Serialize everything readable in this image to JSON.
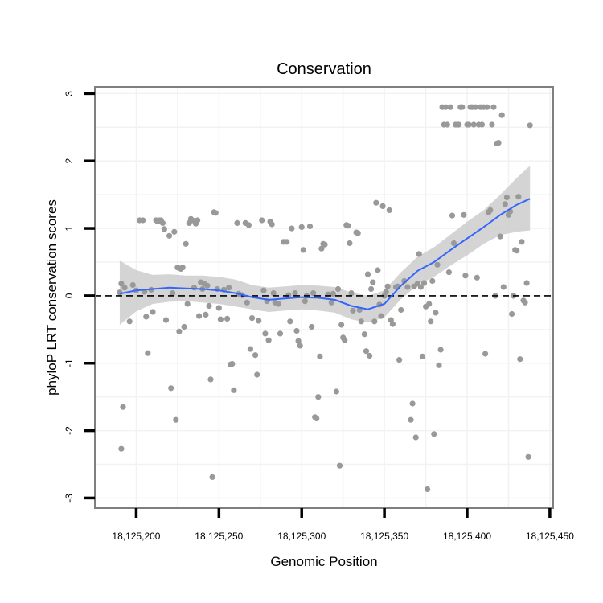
{
  "chart_data": {
    "type": "scatter",
    "title": "Conservation",
    "xlabel": "Genomic Position",
    "ylabel": "phyloP LRT conservation scores",
    "xlim": [
      18125175,
      18125452
    ],
    "ylim": [
      -3.15,
      3.1
    ],
    "x_ticks": [
      18125200,
      18125250,
      18125300,
      18125350,
      18125400,
      18125450
    ],
    "x_tick_labels": [
      "18,125,200",
      "18,125,250",
      "18,125,300",
      "18,125,350",
      "18,125,400",
      "18,125,450"
    ],
    "y_ticks": [
      -3,
      -2,
      -1,
      0,
      1,
      2,
      3
    ],
    "y_tick_labels": [
      "-3",
      "-2",
      "-1",
      "0",
      "1",
      "2",
      "3"
    ],
    "reference_line": {
      "y": 0,
      "style": "dashed"
    },
    "colors": {
      "points": "#999999",
      "smooth_line": "#3366ff",
      "ribbon": "#cccccc",
      "panel_border": "#7f7f7f",
      "grid": "#f2f2f2"
    },
    "series": [
      {
        "name": "scores",
        "kind": "points",
        "points": [
          [
            18125190,
            0.05
          ],
          [
            18125191,
            0.18
          ],
          [
            18125192,
            -1.65
          ],
          [
            18125191,
            -2.27
          ],
          [
            18125193,
            0.12
          ],
          [
            18125196,
            -0.38
          ],
          [
            18125198,
            0.16
          ],
          [
            18125200,
            0.08
          ],
          [
            18125202,
            1.12
          ],
          [
            18125204,
            1.12
          ],
          [
            18125205,
            0.06
          ],
          [
            18125206,
            -0.31
          ],
          [
            18125207,
            -0.85
          ],
          [
            18125209,
            0.09
          ],
          [
            18125210,
            -0.24
          ],
          [
            18125212,
            1.12
          ],
          [
            18125213,
            1.1
          ],
          [
            18125214,
            1.12
          ],
          [
            18125215,
            1.12
          ],
          [
            18125216,
            1.08
          ],
          [
            18125217,
            0.99
          ],
          [
            18125218,
            -0.36
          ],
          [
            18125220,
            0.89
          ],
          [
            18125221,
            -1.37
          ],
          [
            18125222,
            0.04
          ],
          [
            18125223,
            0.95
          ],
          [
            18125224,
            -1.84
          ],
          [
            18125225,
            0.42
          ],
          [
            18125226,
            -0.53
          ],
          [
            18125227,
            0.4
          ],
          [
            18125228,
            0.42
          ],
          [
            18125229,
            -0.46
          ],
          [
            18125230,
            0.77
          ],
          [
            18125231,
            -0.12
          ],
          [
            18125232,
            1.08
          ],
          [
            18125233,
            1.14
          ],
          [
            18125234,
            1.12
          ],
          [
            18125235,
            0.12
          ],
          [
            18125236,
            1.07
          ],
          [
            18125237,
            1.12
          ],
          [
            18125238,
            -0.3
          ],
          [
            18125239,
            0.2
          ],
          [
            18125240,
            0.1
          ],
          [
            18125241,
            0.18
          ],
          [
            18125242,
            -0.28
          ],
          [
            18125243,
            0.15
          ],
          [
            18125244,
            -0.15
          ],
          [
            18125245,
            -1.24
          ],
          [
            18125246,
            -2.69
          ],
          [
            18125247,
            1.24
          ],
          [
            18125248,
            1.23
          ],
          [
            18125249,
            0.1
          ],
          [
            18125250,
            -0.18
          ],
          [
            18125251,
            -0.35
          ],
          [
            18125253,
            0.09
          ],
          [
            18125255,
            -0.34
          ],
          [
            18125256,
            0.12
          ],
          [
            18125257,
            -1.02
          ],
          [
            18125258,
            -1.01
          ],
          [
            18125259,
            -1.4
          ],
          [
            18125261,
            1.08
          ],
          [
            18125262,
            0.03
          ],
          [
            18125264,
            0.01
          ],
          [
            18125266,
            1.08
          ],
          [
            18125267,
            -0.1
          ],
          [
            18125268,
            1.05
          ],
          [
            18125269,
            -0.79
          ],
          [
            18125270,
            -0.33
          ],
          [
            18125272,
            -0.88
          ],
          [
            18125273,
            -1.17
          ],
          [
            18125274,
            -0.37
          ],
          [
            18125276,
            1.12
          ],
          [
            18125277,
            0.08
          ],
          [
            18125278,
            -0.56
          ],
          [
            18125279,
            -0.08
          ],
          [
            18125280,
            -0.66
          ],
          [
            18125281,
            1.1
          ],
          [
            18125282,
            1.06
          ],
          [
            18125283,
            0.04
          ],
          [
            18125284,
            -0.1
          ],
          [
            18125286,
            -0.12
          ],
          [
            18125287,
            -0.56
          ],
          [
            18125289,
            0.8
          ],
          [
            18125291,
            0.8
          ],
          [
            18125292,
            0.01
          ],
          [
            18125293,
            -0.38
          ],
          [
            18125294,
            1.0
          ],
          [
            18125296,
            0.04
          ],
          [
            18125297,
            -0.52
          ],
          [
            18125298,
            -0.67
          ],
          [
            18125299,
            -0.74
          ],
          [
            18125300,
            1.02
          ],
          [
            18125301,
            0.68
          ],
          [
            18125302,
            -0.08
          ],
          [
            18125303,
            0.0
          ],
          [
            18125305,
            1.03
          ],
          [
            18125306,
            -0.46
          ],
          [
            18125307,
            0.04
          ],
          [
            18125308,
            -1.8
          ],
          [
            18125309,
            -1.82
          ],
          [
            18125310,
            -1.5
          ],
          [
            18125311,
            -0.9
          ],
          [
            18125312,
            0.7
          ],
          [
            18125313,
            0.77
          ],
          [
            18125314,
            0.76
          ],
          [
            18125316,
            0.02
          ],
          [
            18125318,
            -0.1
          ],
          [
            18125319,
            0.03
          ],
          [
            18125321,
            -1.42
          ],
          [
            18125322,
            0.1
          ],
          [
            18125323,
            -2.52
          ],
          [
            18125324,
            -0.43
          ],
          [
            18125325,
            -0.62
          ],
          [
            18125326,
            -0.66
          ],
          [
            18125327,
            1.05
          ],
          [
            18125328,
            1.04
          ],
          [
            18125329,
            0.78
          ],
          [
            18125330,
            0.04
          ],
          [
            18125331,
            -0.22
          ],
          [
            18125333,
            0.94
          ],
          [
            18125334,
            0.93
          ],
          [
            18125335,
            -0.21
          ],
          [
            18125336,
            -0.38
          ],
          [
            18125338,
            -0.57
          ],
          [
            18125339,
            -0.82
          ],
          [
            18125340,
            0.32
          ],
          [
            18125341,
            -0.89
          ],
          [
            18125342,
            0.1
          ],
          [
            18125343,
            0.2
          ],
          [
            18125344,
            -0.38
          ],
          [
            18125345,
            1.38
          ],
          [
            18125346,
            0.38
          ],
          [
            18125347,
            -0.13
          ],
          [
            18125348,
            -0.3
          ],
          [
            18125349,
            1.33
          ],
          [
            18125350,
            0.0
          ],
          [
            18125351,
            0.06
          ],
          [
            18125352,
            0.14
          ],
          [
            18125353,
            1.27
          ],
          [
            18125354,
            -0.36
          ],
          [
            18125355,
            -0.42
          ],
          [
            18125357,
            0.13
          ],
          [
            18125358,
            0.14
          ],
          [
            18125359,
            -0.95
          ],
          [
            18125360,
            -0.21
          ],
          [
            18125362,
            0.22
          ],
          [
            18125364,
            0.13
          ],
          [
            18125366,
            -1.84
          ],
          [
            18125367,
            -1.6
          ],
          [
            18125368,
            0.14
          ],
          [
            18125369,
            -2.1
          ],
          [
            18125370,
            0.18
          ],
          [
            18125371,
            0.62
          ],
          [
            18125372,
            0.13
          ],
          [
            18125373,
            -0.9
          ],
          [
            18125374,
            0.19
          ],
          [
            18125375,
            -0.16
          ],
          [
            18125376,
            -2.87
          ],
          [
            18125377,
            -0.12
          ],
          [
            18125378,
            -0.38
          ],
          [
            18125379,
            0.22
          ],
          [
            18125380,
            -2.05
          ],
          [
            18125381,
            -0.25
          ],
          [
            18125382,
            0.46
          ],
          [
            18125383,
            -1.03
          ],
          [
            18125384,
            -0.8
          ],
          [
            18125385,
            2.8
          ],
          [
            18125386,
            2.54
          ],
          [
            18125387,
            2.8
          ],
          [
            18125388,
            2.54
          ],
          [
            18125389,
            0.35
          ],
          [
            18125390,
            2.8
          ],
          [
            18125391,
            1.19
          ],
          [
            18125392,
            0.78
          ],
          [
            18125393,
            2.54
          ],
          [
            18125394,
            2.54
          ],
          [
            18125395,
            2.54
          ],
          [
            18125396,
            2.8
          ],
          [
            18125397,
            2.8
          ],
          [
            18125398,
            1.2
          ],
          [
            18125399,
            0.3
          ],
          [
            18125400,
            2.54
          ],
          [
            18125401,
            2.54
          ],
          [
            18125402,
            2.8
          ],
          [
            18125403,
            2.8
          ],
          [
            18125404,
            2.54
          ],
          [
            18125405,
            2.8
          ],
          [
            18125406,
            0.27
          ],
          [
            18125407,
            2.54
          ],
          [
            18125408,
            2.8
          ],
          [
            18125409,
            2.54
          ],
          [
            18125410,
            2.8
          ],
          [
            18125411,
            -0.86
          ],
          [
            18125412,
            2.8
          ],
          [
            18125413,
            1.24
          ],
          [
            18125414,
            1.27
          ],
          [
            18125415,
            2.54
          ],
          [
            18125416,
            2.8
          ],
          [
            18125417,
            0.0
          ],
          [
            18125418,
            2.26
          ],
          [
            18125419,
            2.27
          ],
          [
            18125420,
            0.88
          ],
          [
            18125421,
            2.68
          ],
          [
            18125422,
            0.13
          ],
          [
            18125423,
            1.36
          ],
          [
            18125424,
            1.46
          ],
          [
            18125425,
            1.2
          ],
          [
            18125426,
            1.25
          ],
          [
            18125427,
            -0.27
          ],
          [
            18125428,
            0.0
          ],
          [
            18125429,
            0.68
          ],
          [
            18125430,
            0.67
          ],
          [
            18125431,
            1.47
          ],
          [
            18125432,
            -0.94
          ],
          [
            18125433,
            0.8
          ],
          [
            18125434,
            -0.07
          ],
          [
            18125435,
            -0.1
          ],
          [
            18125436,
            0.19
          ],
          [
            18125437,
            -2.39
          ],
          [
            18125438,
            2.53
          ]
        ]
      },
      {
        "name": "loess fit",
        "kind": "smooth",
        "points": [
          [
            18125190,
            0.03,
            -0.43,
            0.52
          ],
          [
            18125200,
            0.08,
            -0.23,
            0.38
          ],
          [
            18125210,
            0.1,
            -0.12,
            0.31
          ],
          [
            18125220,
            0.12,
            -0.09,
            0.32
          ],
          [
            18125230,
            0.11,
            -0.08,
            0.3
          ],
          [
            18125240,
            0.1,
            -0.1,
            0.3
          ],
          [
            18125250,
            0.08,
            -0.12,
            0.28
          ],
          [
            18125260,
            0.04,
            -0.16,
            0.24
          ],
          [
            18125270,
            -0.02,
            -0.2,
            0.16
          ],
          [
            18125280,
            -0.06,
            -0.24,
            0.12
          ],
          [
            18125290,
            -0.04,
            -0.22,
            0.14
          ],
          [
            18125300,
            -0.02,
            -0.2,
            0.16
          ],
          [
            18125310,
            -0.03,
            -0.22,
            0.15
          ],
          [
            18125320,
            -0.06,
            -0.25,
            0.13
          ],
          [
            18125330,
            -0.15,
            -0.35,
            0.05
          ],
          [
            18125340,
            -0.2,
            -0.4,
            0.0
          ],
          [
            18125350,
            -0.12,
            -0.32,
            0.08
          ],
          [
            18125360,
            0.15,
            -0.05,
            0.35
          ],
          [
            18125370,
            0.37,
            0.16,
            0.58
          ],
          [
            18125380,
            0.5,
            0.28,
            0.72
          ],
          [
            18125390,
            0.68,
            0.45,
            0.91
          ],
          [
            18125400,
            0.85,
            0.6,
            1.1
          ],
          [
            18125410,
            1.02,
            0.77,
            1.27
          ],
          [
            18125420,
            1.2,
            0.9,
            1.5
          ],
          [
            18125430,
            1.35,
            0.95,
            1.75
          ],
          [
            18125438,
            1.44,
            0.97,
            1.93
          ]
        ]
      }
    ]
  }
}
